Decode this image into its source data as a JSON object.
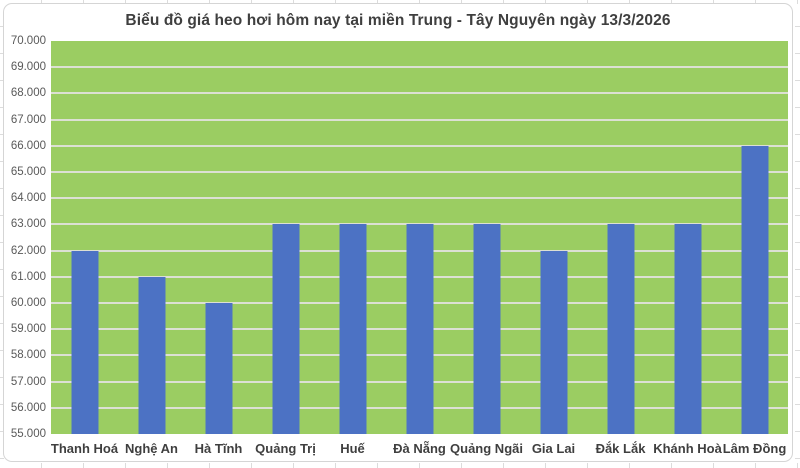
{
  "chart_data": {
    "type": "bar",
    "title": "Biểu đồ giá heo hơi hôm nay tại miền Trung - Tây Nguyên ngày 13/3/2026",
    "categories": [
      "Thanh Hoá",
      "Nghệ An",
      "Hà Tĩnh",
      "Quảng Trị",
      "Huế",
      "Đà Nẵng",
      "Quảng Ngãi",
      "Gia Lai",
      "Đắk Lắk",
      "Khánh Hoà",
      "Lâm Đồng"
    ],
    "values": [
      62000,
      61000,
      60000,
      63000,
      63000,
      63000,
      63000,
      62000,
      63000,
      63000,
      66000
    ],
    "xlabel": "",
    "ylabel": "",
    "ylim": [
      55000,
      70000
    ],
    "y_step": 1000,
    "y_tick_labels": [
      "70.000",
      "69.000",
      "68.000",
      "67.000",
      "66.000",
      "65.000",
      "64.000",
      "63.000",
      "62.000",
      "61.000",
      "60.000",
      "59.000",
      "58.000",
      "57.000",
      "56.000",
      "55.000"
    ],
    "grid": true,
    "legend": false,
    "colors": {
      "bar": "#4c72c4",
      "plot_background": "#9bcd62",
      "gridline": "#dce0d3",
      "title_text": "#3f3f3f",
      "category_text": "#3f3f3f",
      "axis_text": "#595959",
      "chart_border": "#d5d5d5"
    }
  }
}
